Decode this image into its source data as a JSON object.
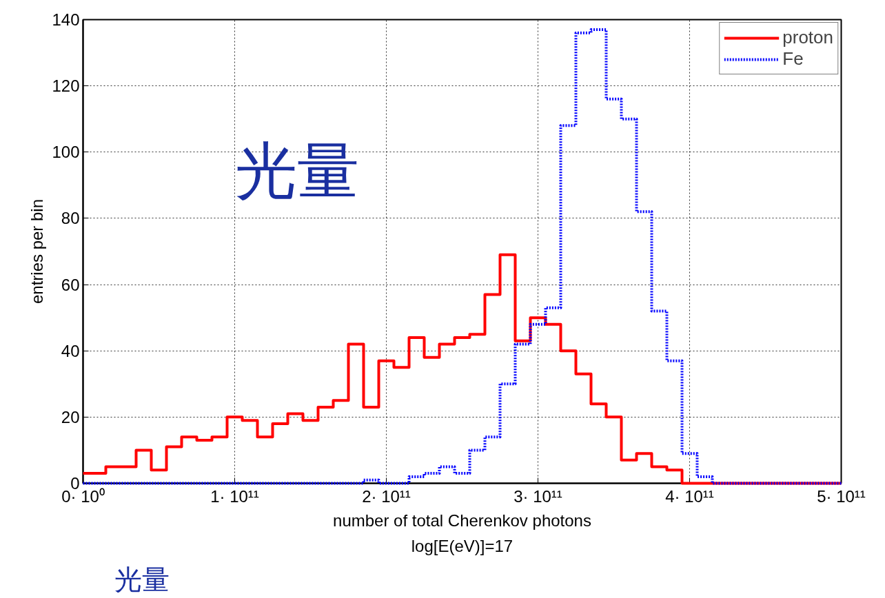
{
  "chart_data": {
    "type": "step",
    "xlabel": "number of total Cherenkov photons",
    "ylabel": "entries per bin",
    "annotations": [
      "log[E(eV)]=17",
      "光量",
      "光量"
    ],
    "x": [
      0,
      10000000000,
      20000000000,
      30000000000,
      40000000000,
      50000000000,
      60000000000,
      70000000000,
      80000000000,
      90000000000,
      100000000000,
      110000000000,
      120000000000,
      130000000000,
      140000000000,
      150000000000,
      160000000000,
      170000000000,
      180000000000,
      190000000000,
      200000000000,
      210000000000,
      220000000000,
      230000000000,
      240000000000,
      250000000000,
      260000000000,
      270000000000,
      280000000000,
      290000000000,
      300000000000,
      310000000000,
      320000000000,
      330000000000,
      340000000000,
      350000000000,
      360000000000,
      370000000000,
      380000000000,
      390000000000,
      400000000000,
      410000000000,
      420000000000,
      430000000000,
      440000000000,
      450000000000,
      460000000000,
      470000000000,
      480000000000,
      490000000000,
      500000000000
    ],
    "series": [
      {
        "name": "proton",
        "color": "#ff0000",
        "line_style": "solid",
        "values": [
          3,
          3,
          5,
          5,
          10,
          4,
          11,
          14,
          13,
          14,
          20,
          19,
          14,
          18,
          21,
          19,
          23,
          25,
          42,
          23,
          37,
          35,
          44,
          38,
          42,
          44,
          45,
          57,
          69,
          43,
          50,
          48,
          40,
          33,
          24,
          20,
          7,
          9,
          5,
          4,
          0,
          0,
          0,
          0,
          0,
          0,
          0,
          0,
          0,
          0,
          0
        ]
      },
      {
        "name": "Fe",
        "color": "#0000ff",
        "line_style": "dotted",
        "values": [
          0,
          0,
          0,
          0,
          0,
          0,
          0,
          0,
          0,
          0,
          0,
          0,
          0,
          0,
          0,
          0,
          0,
          0,
          0,
          1,
          0,
          0,
          2,
          3,
          5,
          3,
          10,
          14,
          30,
          42,
          48,
          53,
          108,
          136,
          137,
          116,
          110,
          82,
          52,
          37,
          9,
          2,
          0,
          0,
          0,
          0,
          0,
          0,
          0,
          0,
          0
        ]
      }
    ],
    "xlim": [
      0,
      500000000000
    ],
    "xticks": [
      {
        "value": 0,
        "label": "0· 10⁰"
      },
      {
        "value": 100000000000,
        "label": "1· 10¹¹"
      },
      {
        "value": 200000000000,
        "label": "2· 10¹¹"
      },
      {
        "value": 300000000000,
        "label": "3· 10¹¹"
      },
      {
        "value": 400000000000,
        "label": "4· 10¹¹"
      },
      {
        "value": 500000000000,
        "label": "5· 10¹¹"
      }
    ],
    "ylim": [
      0,
      140
    ],
    "yticks": [
      0,
      20,
      40,
      60,
      80,
      100,
      120,
      140
    ],
    "grid": true,
    "legend": "top right"
  }
}
